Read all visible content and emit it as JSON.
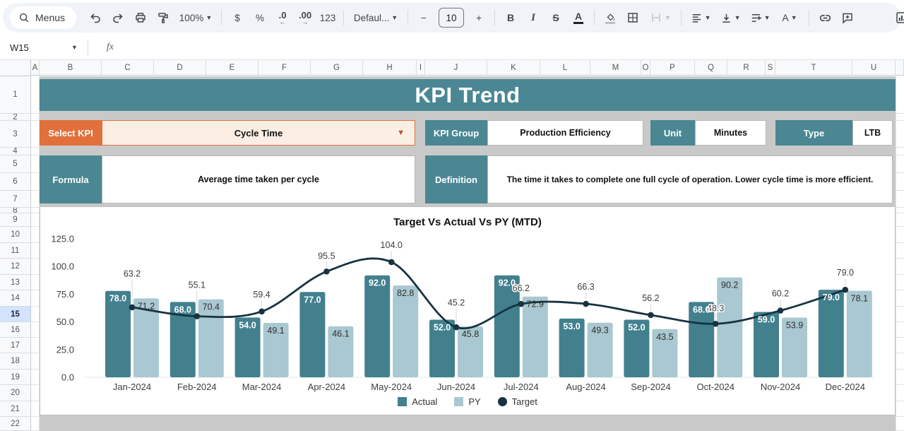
{
  "toolbar": {
    "menus": "Menus",
    "zoom": "100%",
    "currency": "$",
    "percent": "%",
    "decrease_decimal": ".0",
    "decrease_arrow": "←",
    "increase_decimal": ".00",
    "increase_arrow": "→",
    "more_formats": "123",
    "font": "Defaul...",
    "font_size": "10",
    "minus": "−",
    "plus": "+",
    "bold": "B",
    "italic": "I",
    "strikethrough": "S",
    "text_color": "A",
    "text_rotation": "A"
  },
  "formula_bar": {
    "name_box": "W15",
    "fx": "fx"
  },
  "grid": {
    "columns": [
      "A",
      "B",
      "C",
      "D",
      "E",
      "F",
      "G",
      "H",
      "I",
      "J",
      "K",
      "L",
      "M",
      "O",
      "P",
      "Q",
      "R",
      "S",
      "T",
      "U"
    ],
    "rows": [
      "1",
      "2",
      "3",
      "4",
      "5",
      "6",
      "7",
      "8",
      "9",
      "10",
      "11",
      "12",
      "13",
      "14",
      "15",
      "16",
      "17",
      "18",
      "19",
      "20",
      "21",
      "22"
    ],
    "selected_row": "15"
  },
  "dashboard": {
    "title": "KPI Trend",
    "select_kpi_label": "Select KPI",
    "select_kpi_value": "Cycle Time",
    "kpi_group_label": "KPI Group",
    "kpi_group_value": "Production Efficiency",
    "unit_label": "Unit",
    "unit_value": "Minutes",
    "type_label": "Type",
    "type_value": "LTB",
    "formula_label": "Formula",
    "formula_value": "Average time taken per cycle",
    "definition_label": "Definition",
    "definition_value": "The time it takes to complete one full cycle of operation. Lower cycle time is more efficient."
  },
  "chart_data": {
    "type": "combo-bar-line",
    "title": "Target Vs Actual Vs PY (MTD)",
    "categories": [
      "Jan-2024",
      "Feb-2024",
      "Mar-2024",
      "Apr-2024",
      "May-2024",
      "Jun-2024",
      "Jul-2024",
      "Aug-2024",
      "Sep-2024",
      "Oct-2024",
      "Nov-2024",
      "Dec-2024"
    ],
    "series": [
      {
        "name": "Actual",
        "type": "bar",
        "color": "#42808e",
        "values": [
          78.0,
          68.0,
          54.0,
          77.0,
          92.0,
          52.0,
          92.0,
          53.0,
          52.0,
          68.0,
          59.0,
          79.0
        ]
      },
      {
        "name": "PY",
        "type": "bar",
        "color": "#a9c8d1",
        "values": [
          71.2,
          70.4,
          49.1,
          46.1,
          82.8,
          45.8,
          72.9,
          49.3,
          43.5,
          90.2,
          53.9,
          78.1
        ]
      },
      {
        "name": "Target",
        "type": "line",
        "color": "#17333f",
        "values": [
          63.2,
          55.1,
          59.4,
          95.5,
          104.0,
          45.2,
          66.2,
          66.3,
          56.2,
          48.3,
          60.2,
          79.0
        ]
      }
    ],
    "ylim": [
      0,
      125
    ],
    "ytick_step": 25,
    "grid_lines": false,
    "legend_position": "bottom"
  },
  "colors": {
    "teal": "#4a8793",
    "orange": "#e2703a",
    "peach": "#fceee3",
    "actual_bar": "#42808e",
    "py_bar": "#a9c8d1",
    "target_line": "#17333f",
    "row_highlight": "#d3e3fd"
  }
}
